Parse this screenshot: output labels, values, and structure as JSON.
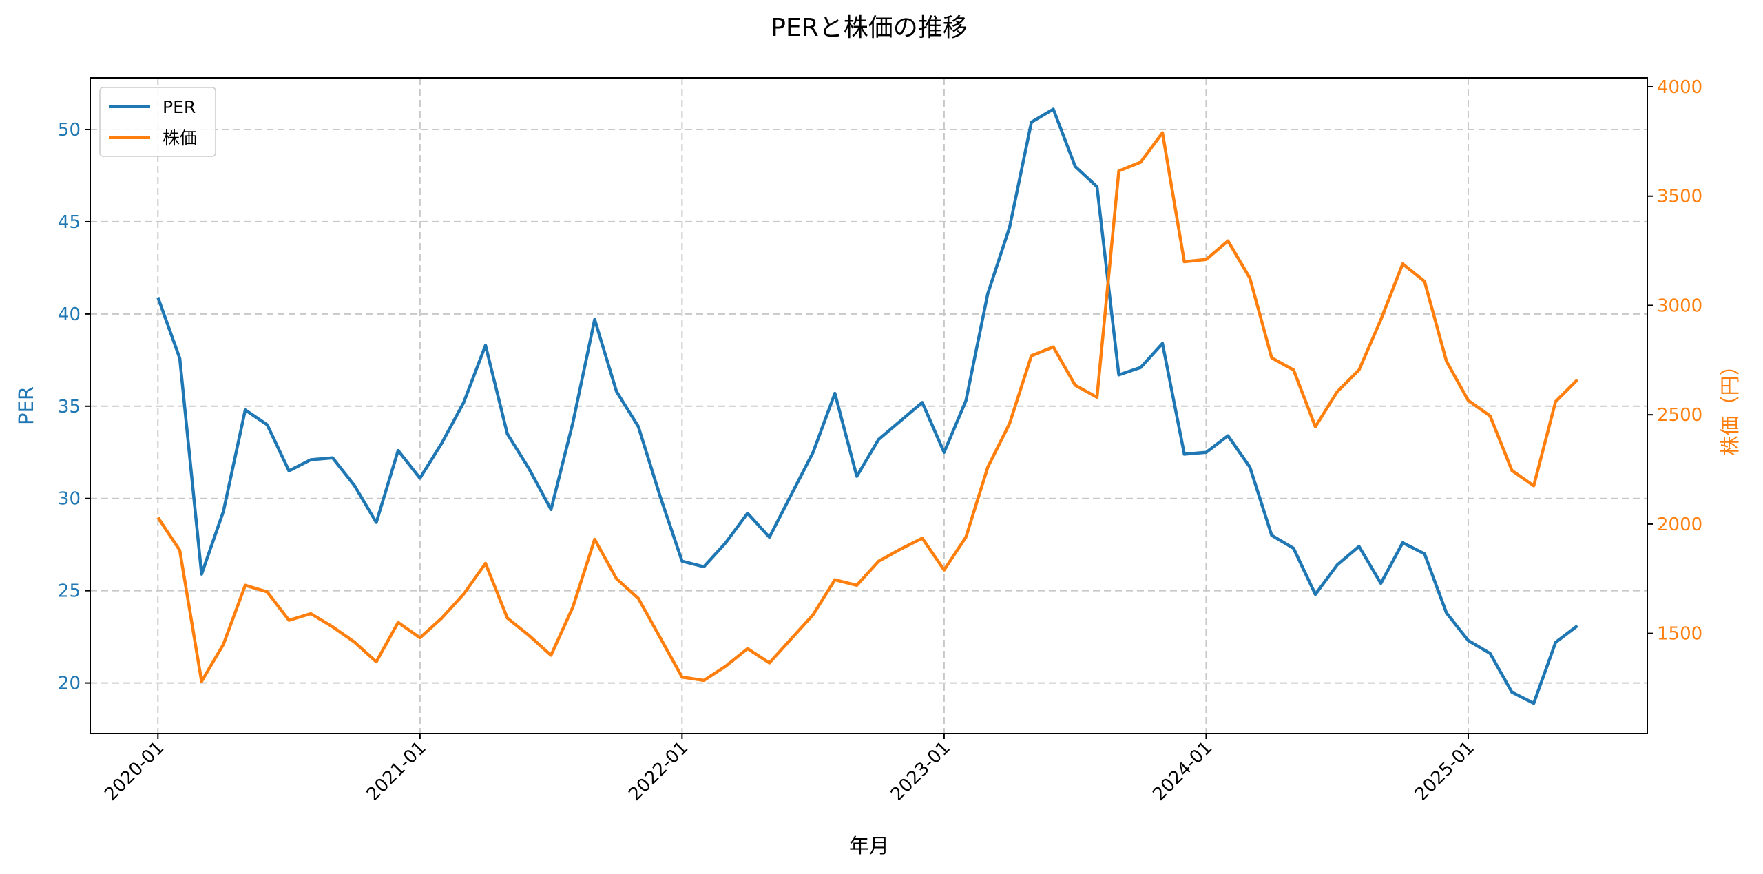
{
  "chart_data": {
    "type": "line",
    "title": "PERと株価の推移",
    "xlabel": "年月",
    "ylabel_left": "PER",
    "ylabel_right": "株価（円）",
    "x_start": "2020-01",
    "x_ticks": [
      "2020-01",
      "2021-01",
      "2022-01",
      "2023-01",
      "2024-01",
      "2025-01"
    ],
    "y_left_ticks": [
      20,
      25,
      30,
      35,
      40,
      45,
      50
    ],
    "y_right_ticks": [
      1500,
      2000,
      2500,
      3000,
      3500,
      4000
    ],
    "ylim_left": [
      17.26,
      52.8
    ],
    "ylim_right": [
      1042,
      4041
    ],
    "xlim_months": [
      -3.1,
      68.2
    ],
    "grid": true,
    "legend_position": "top-left",
    "colors": {
      "left": "#1f77b4",
      "right": "#ff7f0e",
      "grid": "#c8c8c8"
    },
    "series": [
      {
        "name": "PER",
        "axis": "left",
        "values": [
          40.9,
          37.6,
          25.9,
          29.3,
          34.8,
          34.0,
          31.5,
          32.1,
          32.2,
          30.7,
          28.7,
          32.6,
          31.1,
          33.0,
          35.2,
          38.3,
          33.5,
          31.6,
          29.4,
          34.1,
          39.7,
          35.8,
          33.9,
          30.1,
          26.6,
          26.3,
          27.6,
          29.2,
          27.9,
          30.2,
          32.5,
          35.7,
          31.2,
          33.2,
          34.2,
          35.2,
          32.5,
          35.3,
          41.1,
          44.7,
          50.4,
          51.1,
          48.0,
          46.9,
          36.7,
          37.1,
          38.4,
          32.4,
          32.5,
          33.4,
          31.7,
          28.0,
          27.3,
          24.8,
          26.4,
          27.4,
          25.4,
          27.6,
          27.0,
          23.8,
          22.3,
          21.6,
          19.5,
          18.9,
          22.2,
          23.1
        ]
      },
      {
        "name": "株価",
        "axis": "right",
        "values": [
          2030,
          1880,
          1280,
          1450,
          1720,
          1690,
          1560,
          1590,
          1530,
          1460,
          1370,
          1550,
          1480,
          1570,
          1680,
          1820,
          1570,
          1490,
          1400,
          1620,
          1930,
          1750,
          1660,
          1480,
          1300,
          1285,
          1350,
          1430,
          1365,
          1475,
          1585,
          1745,
          1720,
          1830,
          1885,
          1935,
          1790,
          1940,
          2260,
          2460,
          2770,
          2810,
          2635,
          2580,
          3615,
          3655,
          3790,
          3200,
          3210,
          3295,
          3125,
          2760,
          2705,
          2445,
          2605,
          2705,
          2935,
          3190,
          3110,
          2745,
          2565,
          2495,
          2245,
          2175,
          2560,
          2660
        ]
      }
    ]
  }
}
